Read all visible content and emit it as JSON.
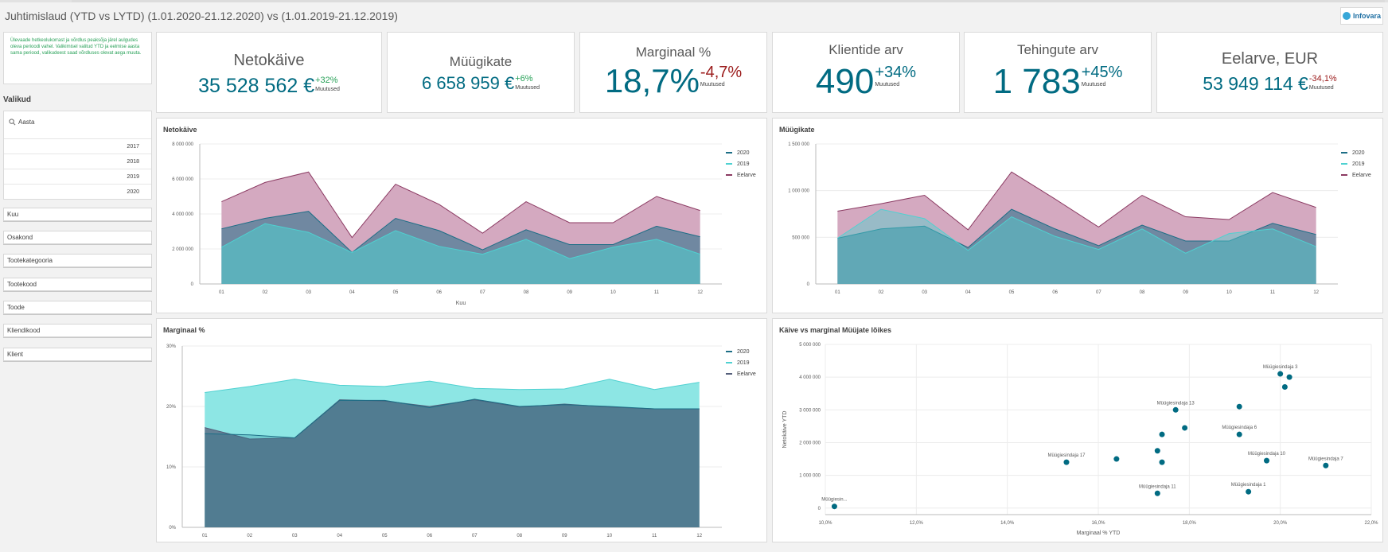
{
  "header": {
    "title": "Juhtimislaud (YTD vs LYTD) (1.01.2020-21.12.2020) vs (1.01.2019-21.12.2019)",
    "logo_text": "Infovara"
  },
  "info_text": "Ülevaade hetkeolukorrast ja võrdlus peaksõja järel aulgudes oleva perioodi vahel. Valikimisel valitud YTD ja eelmise aasta sama periood, valikudeest saad võrdluses olevat aega muuta.",
  "filters": {
    "section_label": "Valikud",
    "year_search_label": "Aasta",
    "years": [
      "2017",
      "2018",
      "2019",
      "2020"
    ],
    "fields": [
      "Kuu",
      "Osakond",
      "Tootekategooria",
      "Tootekood",
      "Toode",
      "Kliendikood",
      "Klient"
    ]
  },
  "kpis": [
    {
      "title": "Netokäive",
      "value": "35 528 562 €",
      "change": "+32%",
      "change_dir": "up",
      "note": "Muutused"
    },
    {
      "title": "Müügikate",
      "value": "6 658 959 €",
      "change": "+6%",
      "change_dir": "up",
      "note": "Muutused"
    },
    {
      "title": "Marginaal %",
      "value": "18,7%",
      "change": "-4,7%",
      "change_dir": "down",
      "note": "Muutused"
    },
    {
      "title": "Klientide arv",
      "value": "490",
      "change": "+34%",
      "change_dir": "up",
      "note": "Muutused"
    },
    {
      "title": "Tehingute arv",
      "value": "1 783",
      "change": "+45%",
      "change_dir": "up",
      "note": "Muutused"
    },
    {
      "title": "Eelarve, EUR",
      "value": "53 949 114 €",
      "change": "-34,1%",
      "change_dir": "down",
      "note": "Muutused"
    }
  ],
  "colors": {
    "s2020": "#1d6e86",
    "s2019": "#4fd1d1",
    "budget": "#8b3a62",
    "budget_fill": "#d4a9c0",
    "marg_budget": "#555f7b",
    "marg_2019": "#8de6e4",
    "dot": "#016b82",
    "accent": "#016b82",
    "positive": "#28a158",
    "negative": "#9b1b1b"
  },
  "chart_data": [
    {
      "type": "area",
      "title": "Netokäive",
      "xlabel": "Kuu",
      "ylabel": "",
      "categories": [
        "01",
        "02",
        "03",
        "04",
        "05",
        "06",
        "07",
        "08",
        "09",
        "10",
        "11",
        "12"
      ],
      "ylim": [
        0,
        8000000
      ],
      "yticks": [
        0,
        2000000,
        4000000,
        6000000,
        8000000
      ],
      "ytick_labels": [
        "0",
        "2 000 000",
        "4 000 000",
        "6 000 000",
        "8 000 000"
      ],
      "series": [
        {
          "name": "2020",
          "values": [
            3150000,
            3750000,
            4150000,
            1800000,
            3750000,
            3050000,
            1950000,
            3100000,
            2250000,
            2250000,
            3300000,
            2700000
          ]
        },
        {
          "name": "2019",
          "values": [
            2100000,
            3450000,
            2950000,
            1800000,
            3050000,
            2150000,
            1700000,
            2550000,
            1450000,
            2100000,
            2550000,
            1700000
          ]
        },
        {
          "name": "Eelarve",
          "values": [
            4700000,
            5800000,
            6400000,
            2650000,
            5700000,
            4550000,
            2900000,
            4700000,
            3500000,
            3500000,
            5000000,
            4200000
          ]
        }
      ],
      "legend_position": "top-right"
    },
    {
      "type": "area",
      "title": "Müügikate",
      "xlabel": "",
      "ylabel": "",
      "categories": [
        "01",
        "02",
        "03",
        "04",
        "05",
        "06",
        "07",
        "08",
        "09",
        "10",
        "11",
        "12"
      ],
      "ylim": [
        0,
        1500000
      ],
      "yticks": [
        0,
        500000,
        1000000,
        1500000
      ],
      "ytick_labels": [
        "0",
        "500 000",
        "1 000 000",
        "1 500 000"
      ],
      "series": [
        {
          "name": "2020",
          "values": [
            490000,
            590000,
            620000,
            390000,
            800000,
            590000,
            410000,
            630000,
            460000,
            460000,
            650000,
            530000
          ]
        },
        {
          "name": "2019",
          "values": [
            490000,
            800000,
            700000,
            360000,
            720000,
            510000,
            370000,
            590000,
            330000,
            540000,
            590000,
            400000
          ]
        },
        {
          "name": "Eelarve",
          "values": [
            780000,
            860000,
            950000,
            580000,
            1200000,
            910000,
            610000,
            950000,
            720000,
            690000,
            980000,
            820000
          ]
        }
      ],
      "legend_position": "top-right"
    },
    {
      "type": "area",
      "title": "Marginaal %",
      "xlabel": "",
      "ylabel": "",
      "categories": [
        "01",
        "02",
        "03",
        "04",
        "05",
        "06",
        "07",
        "08",
        "09",
        "10",
        "11",
        "12"
      ],
      "ylim": [
        0,
        30
      ],
      "yticks": [
        0,
        10,
        20,
        30
      ],
      "ytick_labels": [
        "0%",
        "10%",
        "20%",
        "30%"
      ],
      "series": [
        {
          "name": "2020",
          "values": [
            15.5,
            15.3,
            14.8,
            21.0,
            21.0,
            19.8,
            21.2,
            20.0,
            20.3,
            20.0,
            19.6,
            19.6
          ]
        },
        {
          "name": "2019",
          "values": [
            22.3,
            23.3,
            24.5,
            23.5,
            23.3,
            24.2,
            23.0,
            22.8,
            22.9,
            24.5,
            22.8,
            24.0
          ]
        },
        {
          "name": "Eelarve",
          "values": [
            16.5,
            14.6,
            14.8,
            21.1,
            20.9,
            20.0,
            21.1,
            19.9,
            20.4,
            19.9,
            19.6,
            19.6
          ]
        }
      ],
      "legend_position": "top-right"
    },
    {
      "type": "scatter",
      "title": "Käive vs marginal Müüjate lõikes",
      "xlabel": "Marginaal % YTD",
      "ylabel": "Netokäive YTD",
      "xlim": [
        0.1,
        0.22
      ],
      "ylim": [
        -200000,
        5000000
      ],
      "xticks": [
        0.1,
        0.12,
        0.14,
        0.16,
        0.18,
        0.2,
        0.22
      ],
      "xtick_labels": [
        "10,0%",
        "12,0%",
        "14,0%",
        "16,0%",
        "18,0%",
        "20,0%",
        "22,0%"
      ],
      "yticks": [
        0,
        1000000,
        2000000,
        3000000,
        4000000,
        5000000
      ],
      "ytick_labels": [
        "0",
        "1 000 000",
        "2 000 000",
        "3 000 000",
        "4 000 000",
        "5 000 000"
      ],
      "points": [
        {
          "x": 0.102,
          "y": 50000,
          "label": "Müügiesin..."
        },
        {
          "x": 0.153,
          "y": 1400000,
          "label": "Müügiesindaja 17"
        },
        {
          "x": 0.164,
          "y": 1500000,
          "label": ""
        },
        {
          "x": 0.173,
          "y": 450000,
          "label": "Müügiesindaja 11"
        },
        {
          "x": 0.174,
          "y": 1400000,
          "label": ""
        },
        {
          "x": 0.173,
          "y": 1750000,
          "label": ""
        },
        {
          "x": 0.174,
          "y": 2250000,
          "label": ""
        },
        {
          "x": 0.177,
          "y": 3000000,
          "label": "Müügiesindaja 13"
        },
        {
          "x": 0.179,
          "y": 2450000,
          "label": ""
        },
        {
          "x": 0.191,
          "y": 3100000,
          "label": ""
        },
        {
          "x": 0.191,
          "y": 2250000,
          "label": "Müügiesindaja 6"
        },
        {
          "x": 0.193,
          "y": 500000,
          "label": "Müügiesindaja 1"
        },
        {
          "x": 0.197,
          "y": 1450000,
          "label": "Müügiesindaja 10"
        },
        {
          "x": 0.2,
          "y": 4100000,
          "label": "Müügiesindaja 3"
        },
        {
          "x": 0.202,
          "y": 4000000,
          "label": ""
        },
        {
          "x": 0.201,
          "y": 3700000,
          "label": ""
        },
        {
          "x": 0.21,
          "y": 1300000,
          "label": "Müügiesindaja 7"
        }
      ]
    }
  ]
}
